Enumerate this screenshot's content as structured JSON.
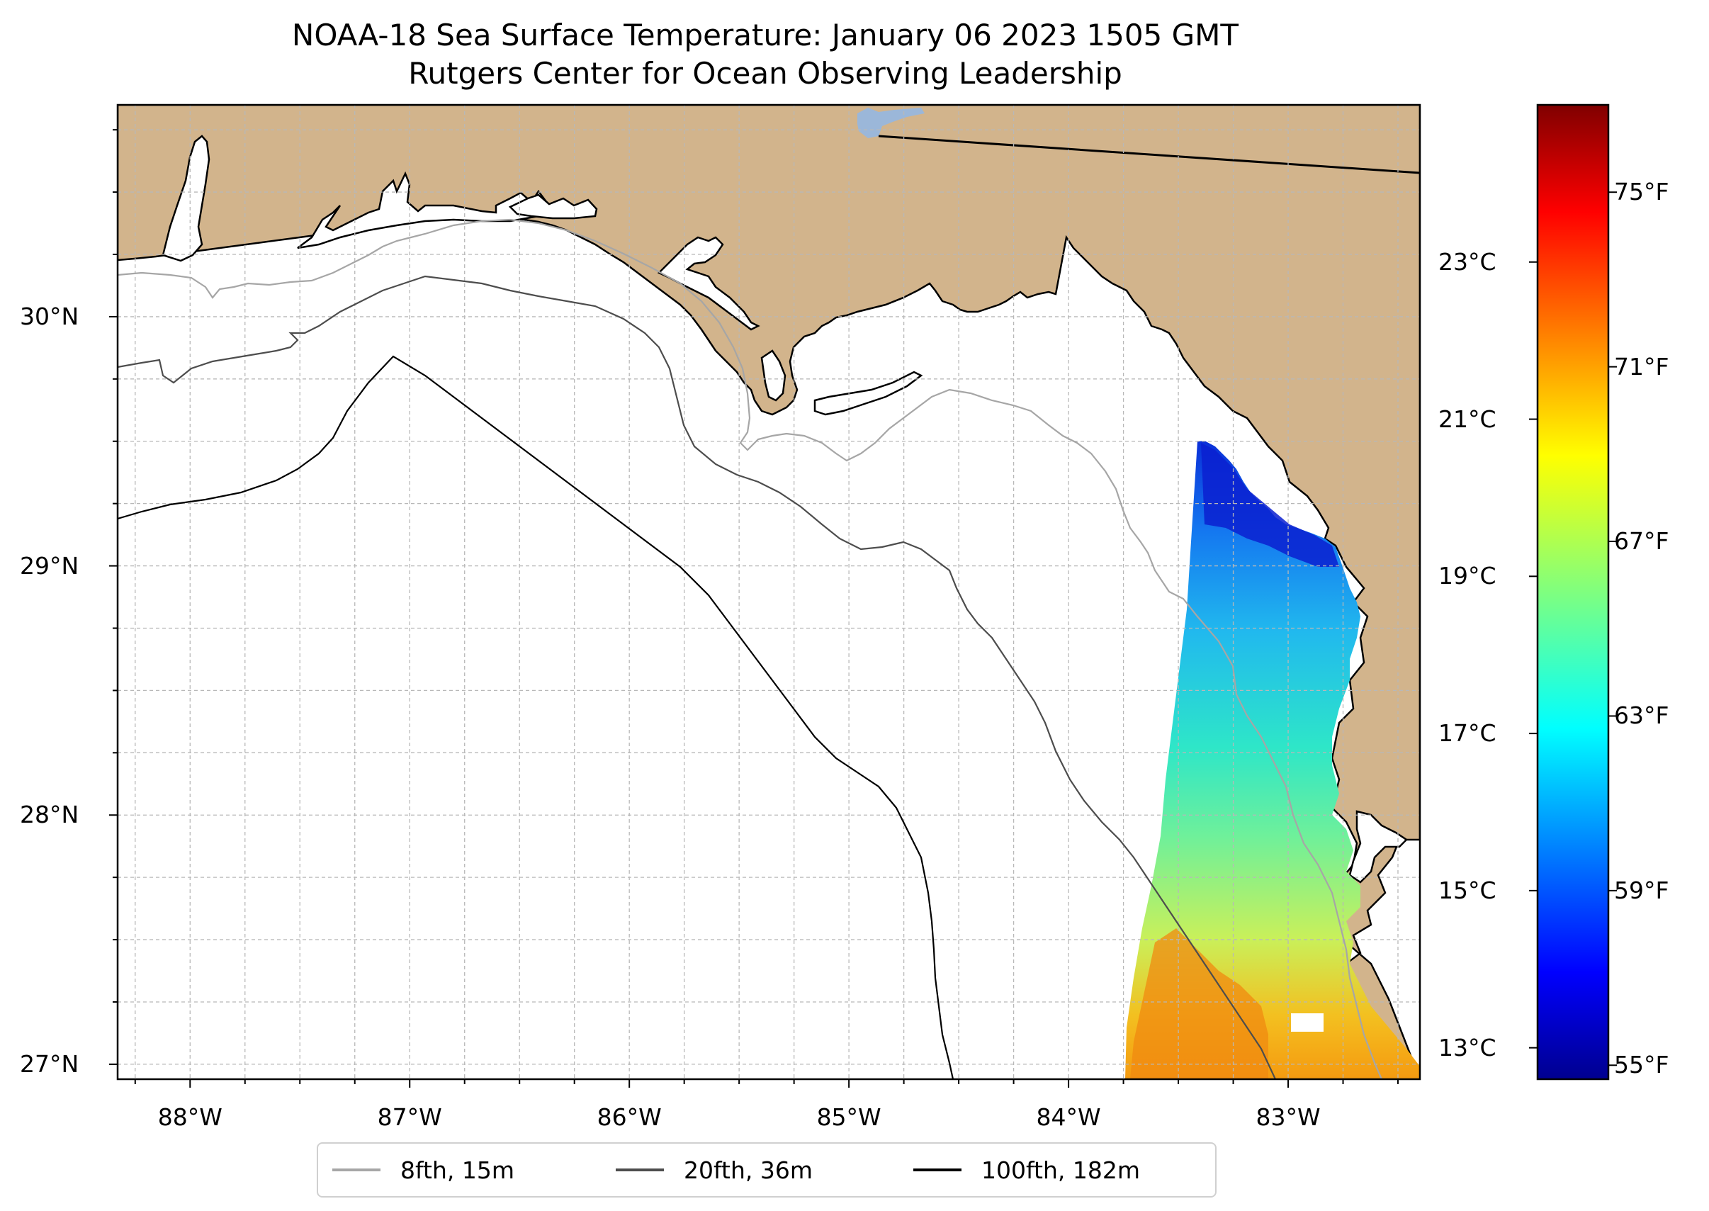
{
  "title": "NOAA-18 Sea Surface Temperature: January 06 2023 1505 GMT",
  "subtitle": "Rutgers Center for Ocean Observing Leadership",
  "map": {
    "lon_range": [
      -88.33,
      -82.4
    ],
    "lat_range": [
      26.94,
      30.85
    ],
    "lat_ticks": [
      {
        "value": 30,
        "label": "30°N"
      },
      {
        "value": 29,
        "label": "29°N"
      },
      {
        "value": 28,
        "label": "28°N"
      },
      {
        "value": 27,
        "label": "27°N"
      }
    ],
    "lon_ticks": [
      {
        "value": -88,
        "label": "88°W"
      },
      {
        "value": -87,
        "label": "87°W"
      },
      {
        "value": -86,
        "label": "86°W"
      },
      {
        "value": -85,
        "label": "85°W"
      },
      {
        "value": -84,
        "label": "84°W"
      },
      {
        "value": -83,
        "label": "83°W"
      }
    ],
    "gridlines": true,
    "land_color": "#d2b48c",
    "ocean_color": "#ffffff",
    "water_body_color": "#9bb7d9"
  },
  "colorbar": {
    "colormap": "jet",
    "min_c": 12.6,
    "max_c": 25.0,
    "celsius_ticks": [
      {
        "value": 23,
        "label": "23°C"
      },
      {
        "value": 21,
        "label": "21°C"
      },
      {
        "value": 19,
        "label": "19°C"
      },
      {
        "value": 17,
        "label": "17°C"
      },
      {
        "value": 15,
        "label": "15°C"
      },
      {
        "value": 13,
        "label": "13°C"
      }
    ],
    "fahrenheit_ticks": [
      {
        "value": 75,
        "label": "75°F"
      },
      {
        "value": 71,
        "label": "71°F"
      },
      {
        "value": 67,
        "label": "67°F"
      },
      {
        "value": 63,
        "label": "63°F"
      },
      {
        "value": 59,
        "label": "59°F"
      },
      {
        "value": 55,
        "label": "55°F"
      }
    ]
  },
  "legend": {
    "items": [
      {
        "label": "8fth, 15m",
        "color": "#a6a6a6"
      },
      {
        "label": "20fth, 36m",
        "color": "#4d4d4d"
      },
      {
        "label": "100fth, 182m",
        "color": "#000000"
      }
    ]
  }
}
